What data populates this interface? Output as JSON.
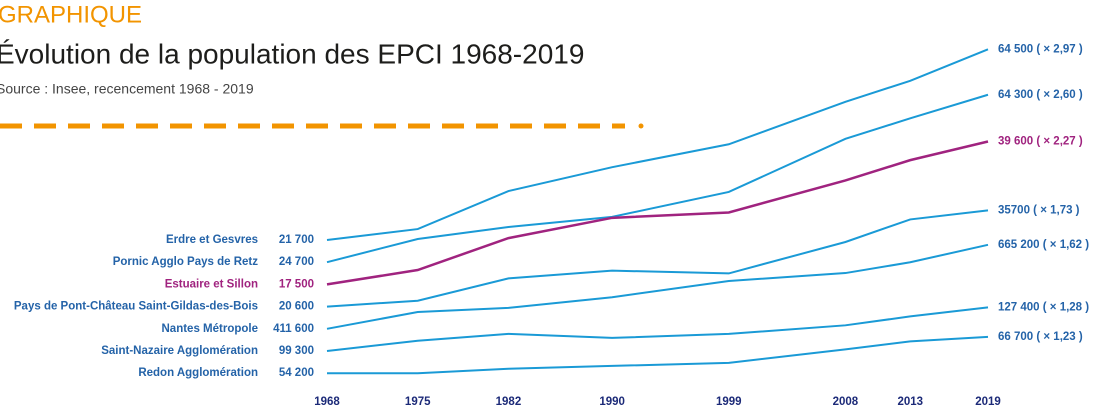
{
  "header": {
    "kicker": "GRAPHIQUE",
    "title": "Évolution de la population des EPCI 1968-2019",
    "source": "Source : Insee, recencement 1968 - 2019"
  },
  "chart_data": {
    "type": "line",
    "x": [
      1968,
      1975,
      1982,
      1990,
      1999,
      2008,
      2013,
      2019
    ],
    "xlim": [
      1968,
      2019
    ],
    "xticks": [
      1968,
      1975,
      1982,
      1990,
      1999,
      2008,
      2013,
      2019
    ],
    "series": [
      {
        "name": "Erdre et Gesvres",
        "color": "#1a9ad6",
        "values": [
          21700,
          23100,
          28700,
          32900,
          37500,
          47800,
          53900,
          64500
        ],
        "value_labels": [
          "21 700",
          null,
          null,
          null,
          null,
          null,
          null,
          "64 500 ( × 2,97 )"
        ]
      },
      {
        "name": "Pornic Agglo Pays de Retz",
        "color": "#1a9ad6",
        "values": [
          24700,
          28200,
          30200,
          32000,
          36900,
          50000,
          56200,
          64300
        ],
        "value_labels": [
          "24 700",
          null,
          null,
          null,
          null,
          null,
          null,
          "64 300 ( × 2,60 )"
        ]
      },
      {
        "name": "Estuaire et Sillon",
        "color": "#a0237f",
        "values": [
          17500,
          19000,
          22800,
          25600,
          26400,
          31700,
          35600,
          39600
        ],
        "value_labels": [
          "17 500",
          null,
          null,
          null,
          null,
          null,
          null,
          "39 600 ( × 2,27 )"
        ]
      },
      {
        "name": "Pays de Pont-Château Saint-Gildas-des-Bois",
        "color": "#1a9ad6",
        "values": [
          20600,
          21300,
          24200,
          25300,
          24900,
          29800,
          33900,
          35700
        ],
        "value_labels": [
          "20 600",
          null,
          null,
          null,
          null,
          null,
          null,
          "35700 ( × 1,73 )"
        ]
      },
      {
        "name": "Nantes Métropole",
        "color": "#1a9ad6",
        "values": [
          411600,
          453000,
          464000,
          493000,
          541000,
          566000,
          602000,
          665200
        ],
        "value_labels": [
          "411 600",
          null,
          null,
          null,
          null,
          null,
          null,
          "665 200 ( × 1,62 )"
        ]
      },
      {
        "name": "Saint-Nazaire Agglomération",
        "color": "#1a9ad6",
        "values": [
          99300,
          105300,
          109500,
          107000,
          109500,
          115000,
          121000,
          127400
        ],
        "value_labels": [
          "99 300",
          null,
          null,
          null,
          null,
          null,
          null,
          "127 400 ( × 1,28 )"
        ]
      },
      {
        "name": "Redon Agglomération",
        "color": "#1a9ad6",
        "values": [
          54200,
          54200,
          55600,
          56500,
          57500,
          62100,
          65000,
          66700
        ],
        "value_labels": [
          "54 200",
          null,
          null,
          null,
          null,
          null,
          null,
          "66 700 ( × 1,23 )"
        ]
      }
    ]
  }
}
